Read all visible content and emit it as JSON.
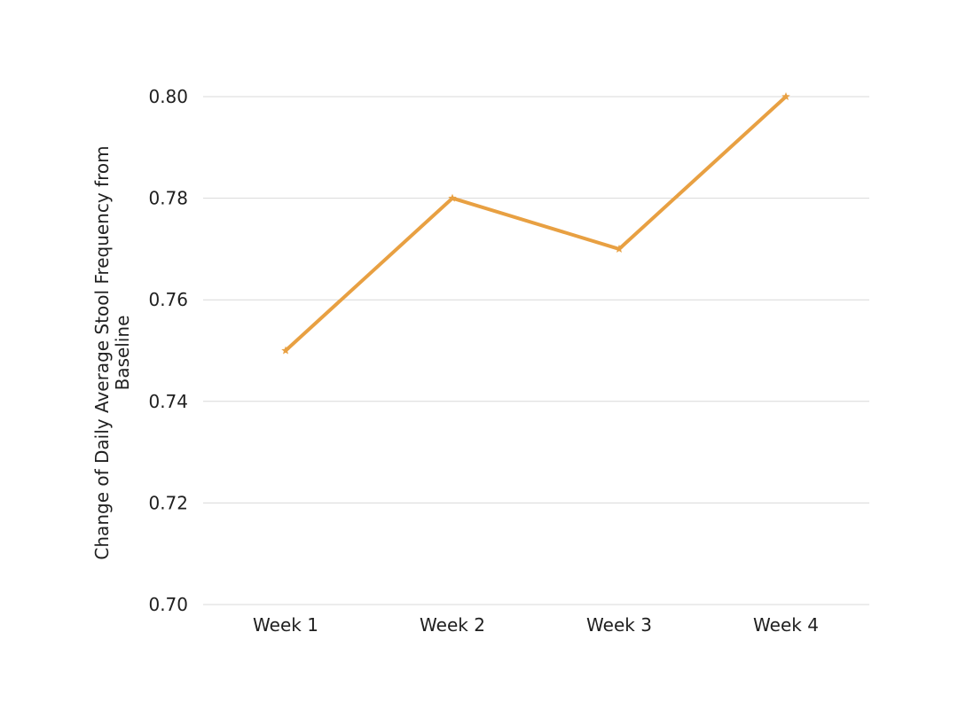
{
  "chart_data": {
    "type": "line",
    "title": "",
    "xlabel": "",
    "ylabel": "Change of Daily Average Stool Frequency from Baseline",
    "categories": [
      "Week 1",
      "Week 2",
      "Week 3",
      "Week 4"
    ],
    "series": [
      {
        "values": [
          0.75,
          0.78,
          0.77,
          0.8
        ],
        "color": "#E8A042",
        "marker": "star"
      }
    ],
    "ylim": [
      0.7,
      0.8
    ],
    "yticks": [
      0.7,
      0.72,
      0.74,
      0.76,
      0.78,
      0.8
    ],
    "ytick_labels": [
      "0.70",
      "0.72",
      "0.74",
      "0.76",
      "0.78",
      "0.80"
    ],
    "grid": true,
    "legend": "none"
  }
}
